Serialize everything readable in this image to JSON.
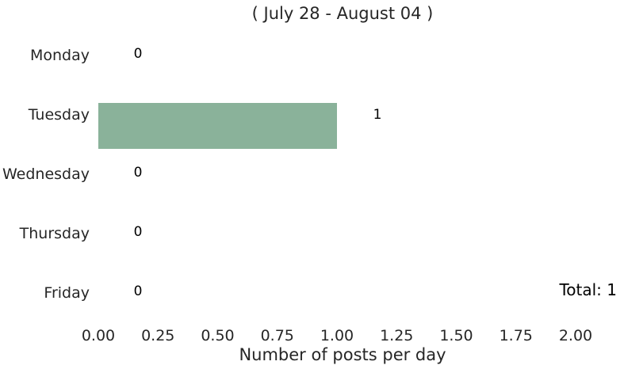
{
  "chart_data": {
    "type": "bar",
    "orientation": "horizontal",
    "title": "( July 28 - August 04 )",
    "xlabel": "Number of posts per day",
    "ylabel": "",
    "categories": [
      "Monday",
      "Tuesday",
      "Wednesday",
      "Thursday",
      "Friday"
    ],
    "values": [
      0,
      1,
      0,
      0,
      0
    ],
    "data_labels": [
      "0",
      "1",
      "0",
      "0",
      "0"
    ],
    "xlim": [
      0,
      2
    ],
    "xticks": [
      "0.00",
      "0.25",
      "0.50",
      "0.75",
      "1.00",
      "1.25",
      "1.50",
      "1.75",
      "2.00"
    ],
    "grid": false,
    "legend": "none",
    "bar_color": "#8ab29a",
    "annotation": "Total: 1"
  }
}
